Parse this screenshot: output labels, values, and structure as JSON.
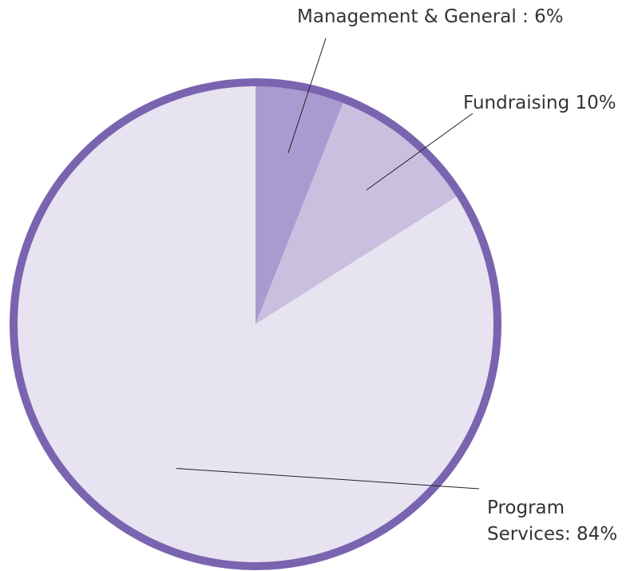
{
  "chart_data": {
    "type": "pie",
    "values": [
      6,
      10,
      84
    ],
    "value_labels": [
      "Management & General : 6%",
      "Fundraising 10%",
      "Program Services: 84%"
    ],
    "colors": [
      "#a99bd0",
      "#c9c0e0",
      "#e7e3f1"
    ],
    "border_color": "#7a64b0"
  }
}
